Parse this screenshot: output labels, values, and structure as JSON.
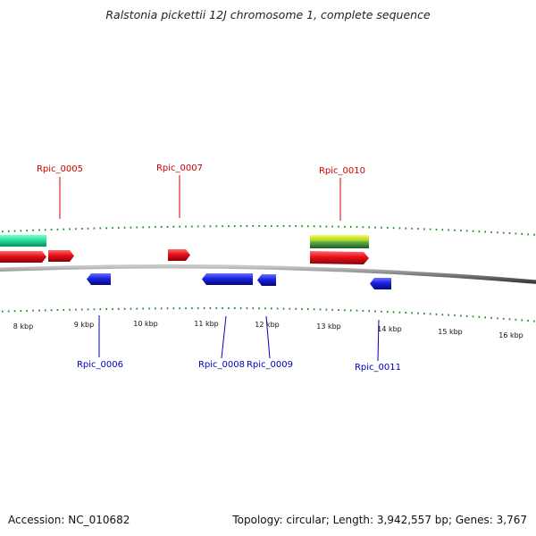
{
  "title": "Ralstonia pickettii 12J chromosome 1, complete sequence",
  "footer": {
    "accession": "Accession: NC_010682",
    "summary": "Topology: circular; Length: 3,942,557 bp; Genes: 3,767"
  },
  "colors": {
    "forward_label": "#cc0000",
    "reverse_label": "#0000bb",
    "forward_gene": "#e8101a",
    "reverse_gene": "#1a22e0",
    "rna_gene": "#22dd99",
    "other_gene_top": "#ccee22",
    "other_gene_bottom": "#338833",
    "tick": "#228822",
    "backbone": "#888888"
  },
  "scale_labels": [
    "8 kbp",
    "9 kbp",
    "10 kbp",
    "11 kbp",
    "12 kbp",
    "13 kbp",
    "14 kbp",
    "15 kbp",
    "16 kbp"
  ],
  "forward_labels": [
    "Rpic_0005",
    "Rpic_0007",
    "Rpic_0010"
  ],
  "reverse_labels": [
    "Rpic_0006",
    "Rpic_0008",
    "Rpic_0009",
    "Rpic_0011"
  ]
}
